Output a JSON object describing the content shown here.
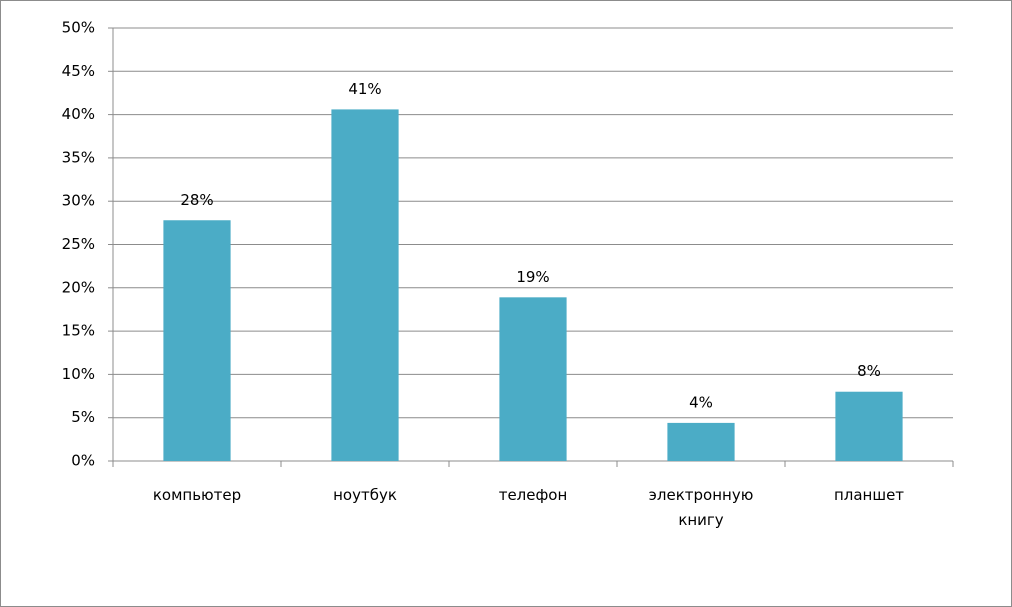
{
  "chart_data": {
    "type": "bar",
    "categories": [
      "компьютер",
      "ноутбук",
      "телефон",
      "электронную книгу",
      "планшет"
    ],
    "values": [
      27.8,
      40.6,
      18.9,
      4.4,
      8.0
    ],
    "value_labels": [
      "28%",
      "41%",
      "19%",
      "4%",
      "8%"
    ],
    "color": "#4bacc6",
    "ylim": [
      0,
      50
    ],
    "yticks": [
      {
        "value": 0,
        "label": "0%"
      },
      {
        "value": 5,
        "label": "5%"
      },
      {
        "value": 10,
        "label": "10%"
      },
      {
        "value": 15,
        "label": "15%"
      },
      {
        "value": 20,
        "label": "20%"
      },
      {
        "value": 25,
        "label": "25%"
      },
      {
        "value": 30,
        "label": "30%"
      },
      {
        "value": 35,
        "label": "35%"
      },
      {
        "value": 40,
        "label": "40%"
      },
      {
        "value": 45,
        "label": "45%"
      },
      {
        "value": 50,
        "label": "50%"
      }
    ],
    "grid": true
  }
}
